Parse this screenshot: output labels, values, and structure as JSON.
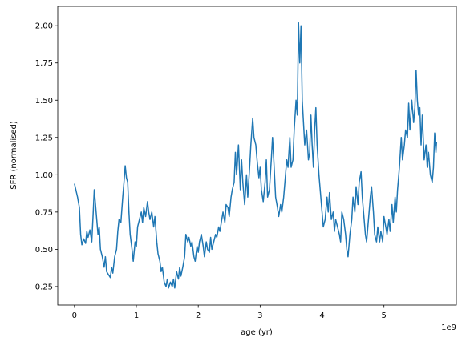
{
  "chart_data": {
    "type": "line",
    "xlabel": "age (yr)",
    "ylabel": "SFR (normalised)",
    "x_offset_text": "1e9",
    "xlim": [
      -0.27,
      6.17
    ],
    "ylim": [
      0.126,
      2.13
    ],
    "xticks": [
      0,
      1,
      2,
      3,
      4,
      5
    ],
    "yticks": [
      {
        "value": 0.25,
        "label": "0.25"
      },
      {
        "value": 0.5,
        "label": "0.50"
      },
      {
        "value": 0.75,
        "label": "0.75"
      },
      {
        "value": 1.0,
        "label": "1.00"
      },
      {
        "value": 1.25,
        "label": "1.25"
      },
      {
        "value": 1.5,
        "label": "1.50"
      },
      {
        "value": 1.75,
        "label": "1.75"
      },
      {
        "value": 2.0,
        "label": "2.00"
      }
    ],
    "grid": false,
    "x": [
      0.0,
      0.05,
      0.08,
      0.1,
      0.12,
      0.15,
      0.18,
      0.2,
      0.22,
      0.25,
      0.28,
      0.3,
      0.32,
      0.35,
      0.38,
      0.4,
      0.42,
      0.45,
      0.48,
      0.5,
      0.52,
      0.55,
      0.58,
      0.6,
      0.62,
      0.65,
      0.68,
      0.7,
      0.72,
      0.75,
      0.78,
      0.8,
      0.82,
      0.84,
      0.86,
      0.88,
      0.9,
      0.93,
      0.95,
      0.98,
      1.0,
      1.02,
      1.05,
      1.08,
      1.1,
      1.12,
      1.15,
      1.18,
      1.2,
      1.22,
      1.25,
      1.28,
      1.3,
      1.33,
      1.35,
      1.38,
      1.4,
      1.42,
      1.45,
      1.48,
      1.5,
      1.52,
      1.55,
      1.58,
      1.6,
      1.62,
      1.65,
      1.68,
      1.7,
      1.72,
      1.75,
      1.78,
      1.8,
      1.83,
      1.85,
      1.88,
      1.9,
      1.93,
      1.95,
      1.98,
      2.0,
      2.02,
      2.05,
      2.08,
      2.1,
      2.13,
      2.15,
      2.18,
      2.2,
      2.22,
      2.25,
      2.28,
      2.3,
      2.33,
      2.35,
      2.38,
      2.4,
      2.43,
      2.45,
      2.48,
      2.5,
      2.53,
      2.55,
      2.58,
      2.6,
      2.62,
      2.65,
      2.68,
      2.7,
      2.72,
      2.75,
      2.78,
      2.8,
      2.83,
      2.85,
      2.88,
      2.9,
      2.93,
      2.95,
      2.98,
      3.0,
      3.02,
      3.05,
      3.08,
      3.1,
      3.12,
      3.15,
      3.18,
      3.2,
      3.22,
      3.25,
      3.28,
      3.3,
      3.33,
      3.35,
      3.38,
      3.4,
      3.43,
      3.45,
      3.48,
      3.5,
      3.53,
      3.55,
      3.58,
      3.6,
      3.62,
      3.64,
      3.66,
      3.68,
      3.7,
      3.72,
      3.75,
      3.78,
      3.8,
      3.82,
      3.84,
      3.86,
      3.88,
      3.9,
      3.92,
      3.95,
      3.98,
      4.0,
      4.02,
      4.05,
      4.08,
      4.1,
      4.12,
      4.15,
      4.18,
      4.2,
      4.22,
      4.25,
      4.28,
      4.3,
      4.32,
      4.35,
      4.38,
      4.4,
      4.42,
      4.45,
      4.48,
      4.5,
      4.53,
      4.55,
      4.58,
      4.6,
      4.63,
      4.65,
      4.68,
      4.7,
      4.72,
      4.75,
      4.78,
      4.8,
      4.83,
      4.85,
      4.88,
      4.9,
      4.93,
      4.95,
      4.98,
      5.0,
      5.03,
      5.05,
      5.08,
      5.1,
      5.13,
      5.15,
      5.18,
      5.2,
      5.22,
      5.25,
      5.28,
      5.3,
      5.33,
      5.35,
      5.38,
      5.4,
      5.42,
      5.45,
      5.48,
      5.5,
      5.52,
      5.54,
      5.56,
      5.58,
      5.6,
      5.62,
      5.65,
      5.68,
      5.7,
      5.72,
      5.75,
      5.78,
      5.8,
      5.82,
      5.84,
      5.85
    ],
    "series": [
      {
        "color": "#1f77b4",
        "values": [
          0.94,
          0.85,
          0.78,
          0.6,
          0.53,
          0.57,
          0.54,
          0.62,
          0.58,
          0.63,
          0.55,
          0.72,
          0.9,
          0.75,
          0.6,
          0.65,
          0.5,
          0.45,
          0.38,
          0.45,
          0.35,
          0.33,
          0.31,
          0.38,
          0.34,
          0.45,
          0.5,
          0.62,
          0.7,
          0.68,
          0.85,
          0.95,
          1.06,
          0.98,
          0.95,
          0.75,
          0.6,
          0.5,
          0.42,
          0.55,
          0.52,
          0.65,
          0.7,
          0.75,
          0.68,
          0.78,
          0.72,
          0.82,
          0.75,
          0.7,
          0.75,
          0.65,
          0.72,
          0.55,
          0.47,
          0.42,
          0.35,
          0.38,
          0.28,
          0.25,
          0.3,
          0.24,
          0.28,
          0.25,
          0.3,
          0.24,
          0.35,
          0.3,
          0.38,
          0.32,
          0.38,
          0.45,
          0.6,
          0.55,
          0.58,
          0.52,
          0.55,
          0.45,
          0.42,
          0.52,
          0.48,
          0.55,
          0.6,
          0.52,
          0.45,
          0.55,
          0.5,
          0.48,
          0.58,
          0.5,
          0.55,
          0.6,
          0.58,
          0.65,
          0.62,
          0.7,
          0.75,
          0.68,
          0.8,
          0.78,
          0.72,
          0.85,
          0.9,
          0.95,
          1.15,
          1.0,
          1.2,
          0.9,
          1.1,
          0.95,
          0.8,
          1.0,
          0.85,
          1.05,
          1.2,
          1.38,
          1.25,
          1.2,
          1.1,
          0.98,
          1.05,
          0.9,
          0.82,
          0.95,
          1.1,
          0.85,
          0.9,
          1.1,
          1.25,
          1.1,
          0.85,
          0.78,
          0.72,
          0.8,
          0.75,
          0.85,
          0.95,
          1.1,
          1.05,
          1.25,
          1.05,
          1.1,
          1.3,
          1.5,
          1.4,
          2.02,
          1.75,
          2.0,
          1.5,
          1.35,
          1.2,
          1.3,
          1.1,
          1.15,
          1.4,
          1.2,
          1.05,
          1.3,
          1.45,
          1.2,
          1.0,
          0.85,
          0.75,
          0.65,
          0.7,
          0.85,
          0.75,
          0.88,
          0.7,
          0.75,
          0.62,
          0.7,
          0.65,
          0.6,
          0.55,
          0.75,
          0.7,
          0.6,
          0.5,
          0.45,
          0.6,
          0.7,
          0.85,
          0.75,
          0.92,
          0.8,
          0.95,
          1.02,
          0.85,
          0.7,
          0.6,
          0.55,
          0.7,
          0.85,
          0.92,
          0.75,
          0.6,
          0.55,
          0.65,
          0.55,
          0.62,
          0.55,
          0.72,
          0.65,
          0.6,
          0.7,
          0.62,
          0.8,
          0.68,
          0.85,
          0.75,
          0.9,
          1.05,
          1.25,
          1.1,
          1.2,
          1.3,
          1.25,
          1.48,
          1.3,
          1.5,
          1.35,
          1.45,
          1.7,
          1.5,
          1.4,
          1.45,
          1.2,
          1.4,
          1.1,
          1.2,
          1.05,
          1.15,
          1.0,
          0.95,
          1.05,
          1.28,
          1.15,
          1.22
        ]
      }
    ]
  }
}
